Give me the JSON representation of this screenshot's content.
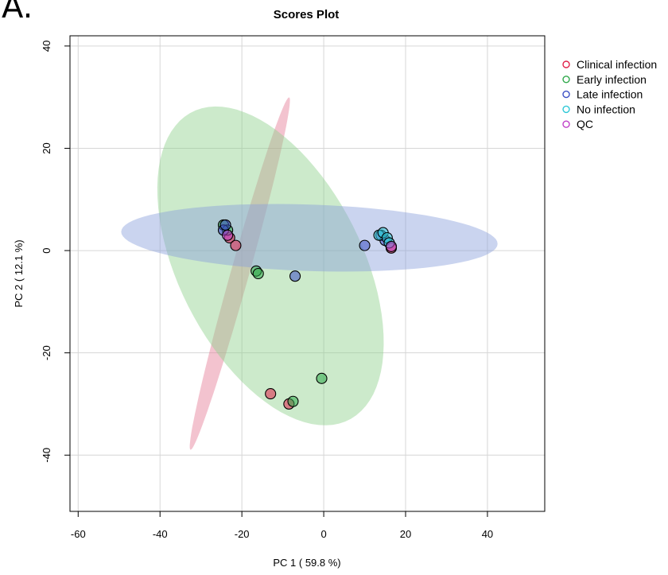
{
  "panel_label": "A.",
  "chart_data": {
    "type": "scatter",
    "title": "Scores Plot",
    "xlabel": "PC 1 ( 59.8 %)",
    "ylabel": "PC 2 ( 12.1 %)",
    "xlim": [
      -62,
      54
    ],
    "ylim": [
      -51,
      42
    ],
    "xticks": [
      -60,
      -40,
      -20,
      0,
      20,
      40
    ],
    "yticks": [
      -40,
      -20,
      0,
      20,
      40
    ],
    "grid": true,
    "legend_position": "top-right outside",
    "series": [
      {
        "name": "Clinical infection",
        "color": "#e0204a",
        "points": [
          [
            -23,
            2.5
          ],
          [
            -21.5,
            1
          ],
          [
            -13,
            -28
          ],
          [
            -8.5,
            -30
          ],
          [
            16.5,
            0.5
          ]
        ],
        "ellipse": {
          "cx": -20.5,
          "cy": -4.5,
          "rx": 36.5,
          "ry": 2.2,
          "angle": 70.7,
          "fill": "#e57b95"
        }
      },
      {
        "name": "Early infection",
        "color": "#2ea84a",
        "points": [
          [
            -24.5,
            5
          ],
          [
            -23.5,
            4
          ],
          [
            -16.5,
            -4
          ],
          [
            -16,
            -4.5
          ],
          [
            -0.5,
            -25
          ],
          [
            -7.5,
            -29.5
          ]
        ],
        "ellipse": {
          "cx": -13,
          "cy": -3,
          "rx": 36,
          "ry": 21,
          "angle": -52,
          "fill": "#8fd08c"
        }
      },
      {
        "name": "Late infection",
        "color": "#3c4fc4",
        "points": [
          [
            -24.5,
            4
          ],
          [
            -24,
            5
          ],
          [
            -7,
            -5
          ],
          [
            10,
            1
          ],
          [
            14,
            3
          ],
          [
            15,
            2
          ]
        ],
        "ellipse": {
          "cx": -3.5,
          "cy": 2.5,
          "rx": 46,
          "ry": 6.5,
          "angle": -1.5,
          "fill": "#8aa0db"
        }
      },
      {
        "name": "No infection",
        "color": "#2ec8d6",
        "points": [
          [
            13.5,
            3
          ],
          [
            14.5,
            3.5
          ],
          [
            15.5,
            2.5
          ],
          [
            16,
            1.5
          ]
        ]
      },
      {
        "name": "QC",
        "color": "#c040c8",
        "points": [
          [
            -23.5,
            3
          ],
          [
            16.5,
            0.8
          ]
        ]
      }
    ]
  }
}
